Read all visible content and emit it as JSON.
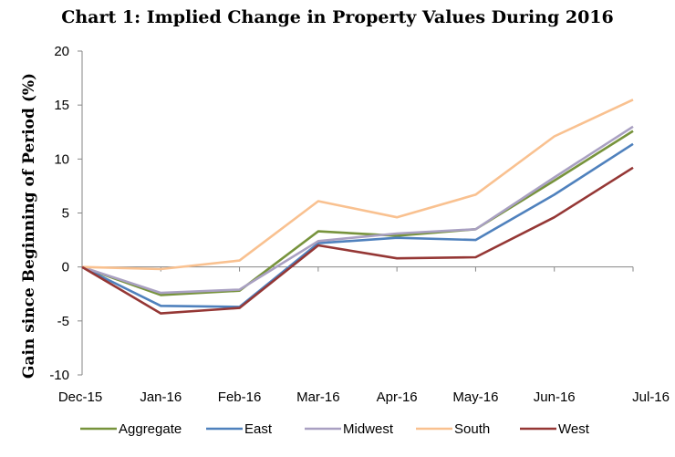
{
  "chart_data": {
    "type": "line",
    "title": "Chart 1: Implied Change in Property Values During 2016",
    "ylabel": "Gain since Beginning of Period (%)",
    "xlabel": "",
    "ylim": [
      -10,
      20
    ],
    "yticks": [
      -10,
      -5,
      0,
      5,
      10,
      15,
      20
    ],
    "ytick_labels": [
      "-10",
      "-5",
      "0",
      "5",
      "10",
      "15",
      "20"
    ],
    "categories": [
      "Dec-15",
      "Jan-16",
      "Feb-16",
      "Mar-16",
      "Apr-16",
      "May-16",
      "Jun-16",
      "Jul-16"
    ],
    "grid": false,
    "legend_position": "bottom",
    "series": [
      {
        "name": "Aggregate",
        "color": "#77933c",
        "values": [
          0,
          -2.6,
          -2.2,
          3.3,
          2.9,
          3.5,
          8.0,
          12.6
        ]
      },
      {
        "name": "East",
        "color": "#4f81bd",
        "values": [
          0,
          -3.6,
          -3.7,
          2.2,
          2.7,
          2.5,
          6.7,
          11.4
        ]
      },
      {
        "name": "Midwest",
        "color": "#a9a0c2",
        "values": [
          0,
          -2.4,
          -2.1,
          2.4,
          3.1,
          3.5,
          8.3,
          13.0
        ]
      },
      {
        "name": "South",
        "color": "#f9c190",
        "values": [
          0,
          -0.2,
          0.6,
          6.1,
          4.6,
          6.7,
          12.1,
          15.5
        ]
      },
      {
        "name": "West",
        "color": "#953735",
        "values": [
          0,
          -4.3,
          -3.8,
          2.0,
          0.8,
          0.9,
          4.6,
          9.2
        ]
      }
    ]
  }
}
